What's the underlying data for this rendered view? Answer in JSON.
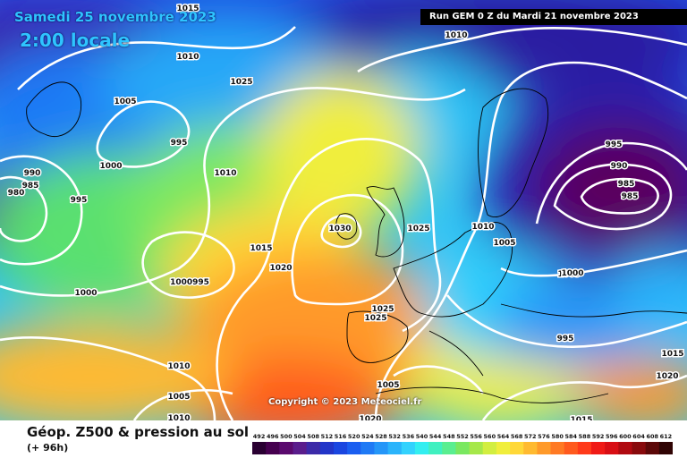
{
  "header": {
    "date": "Samedi 25 novembre 2023",
    "local_time": "2:00 locale",
    "run_info": "Run GEM 0 Z du Mardi 21 novembre 2023"
  },
  "map": {
    "copyright": "Copyright © 2023 Meteociel.fr",
    "isobar_labels": [
      "1015",
      "1010",
      "1010",
      "1025",
      "1005",
      "995",
      "1000",
      "990",
      "985",
      "980",
      "995",
      "1010",
      "1030",
      "1025",
      "1015",
      "1020",
      "1000",
      "1000995",
      "1010",
      "1005",
      "995",
      "990",
      "985",
      "985",
      "1005",
      "1000",
      "1025",
      "1025",
      "995",
      "1015",
      "1010",
      "1020",
      "1005",
      "1005",
      "1010",
      "1020",
      "1015"
    ]
  },
  "legend": {
    "title": "Géop. Z500 & pression au sol",
    "subtitle": "(+ 96h)",
    "scale_labels": [
      "492",
      "496",
      "500",
      "504",
      "508",
      "512",
      "516",
      "520",
      "524",
      "528",
      "532",
      "536",
      "540",
      "544",
      "548",
      "552",
      "556",
      "560",
      "564",
      "568",
      "572",
      "576",
      "580",
      "584",
      "588",
      "592",
      "596",
      "600",
      "604",
      "608",
      "612"
    ],
    "scale_colors": [
      "#2a0032",
      "#46004f",
      "#5a0a6e",
      "#5a1d8c",
      "#3c2aa8",
      "#2235c8",
      "#1a46e0",
      "#1a5ef0",
      "#1f7af5",
      "#2596f8",
      "#2bb4fb",
      "#33d2fd",
      "#33eef0",
      "#40f0c0",
      "#5aee90",
      "#7ae860",
      "#a6e84a",
      "#d2ee40",
      "#f0ee3c",
      "#ffd838",
      "#ffba30",
      "#ff9a2a",
      "#ff7a24",
      "#ff5a1e",
      "#ff3a1a",
      "#f01a16",
      "#d80e14",
      "#b00a10",
      "#880a0c",
      "#5c0808",
      "#300404"
    ]
  }
}
